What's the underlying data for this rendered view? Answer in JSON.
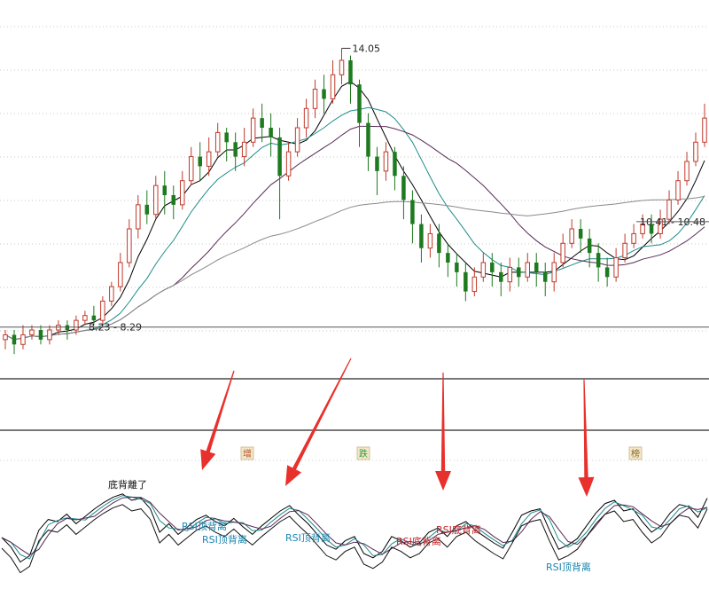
{
  "chart_data": {
    "type": "candlestick",
    "price_panel": {
      "ylim": [
        7.5,
        14.5
      ],
      "high_label": "14.05",
      "range_labels": [
        {
          "text": "8.23 - 8.29",
          "value": 8.26
        },
        {
          "text": "10.41 - 10.48",
          "value": 10.45
        }
      ],
      "candles": [
        [
          8.0,
          8.1,
          7.8,
          8.2
        ],
        [
          8.1,
          7.9,
          7.7,
          8.2
        ],
        [
          7.9,
          8.1,
          7.8,
          8.3
        ],
        [
          8.1,
          8.2,
          8.0,
          8.3
        ],
        [
          8.2,
          8.0,
          7.9,
          8.3
        ],
        [
          8.0,
          8.2,
          7.9,
          8.3
        ],
        [
          8.2,
          8.3,
          8.1,
          8.4
        ],
        [
          8.3,
          8.2,
          8.0,
          8.4
        ],
        [
          8.2,
          8.4,
          8.1,
          8.5
        ],
        [
          8.4,
          8.5,
          8.3,
          8.6
        ],
        [
          8.5,
          8.4,
          8.3,
          8.7
        ],
        [
          8.4,
          8.8,
          8.3,
          8.9
        ],
        [
          8.8,
          9.1,
          8.7,
          9.2
        ],
        [
          9.1,
          9.6,
          9.0,
          9.8
        ],
        [
          9.6,
          10.3,
          9.5,
          10.5
        ],
        [
          10.3,
          10.8,
          10.1,
          11.0
        ],
        [
          10.8,
          10.6,
          10.4,
          11.1
        ],
        [
          10.6,
          11.2,
          10.5,
          11.4
        ],
        [
          11.2,
          11.0,
          10.6,
          11.5
        ],
        [
          11.0,
          10.8,
          10.5,
          11.2
        ],
        [
          10.8,
          11.3,
          10.7,
          11.5
        ],
        [
          11.3,
          11.8,
          11.2,
          12.0
        ],
        [
          11.8,
          11.6,
          11.3,
          12.1
        ],
        [
          11.6,
          11.9,
          11.4,
          12.2
        ],
        [
          11.9,
          12.3,
          11.8,
          12.5
        ],
        [
          12.3,
          12.1,
          11.7,
          12.4
        ],
        [
          12.1,
          11.8,
          11.5,
          12.3
        ],
        [
          11.8,
          12.1,
          11.6,
          12.4
        ],
        [
          12.1,
          12.6,
          12.0,
          12.8
        ],
        [
          12.6,
          12.4,
          12.1,
          12.9
        ],
        [
          12.4,
          12.2,
          11.8,
          12.7
        ],
        [
          12.2,
          11.4,
          10.5,
          12.4
        ],
        [
          11.4,
          11.9,
          11.3,
          12.1
        ],
        [
          11.9,
          12.4,
          11.8,
          12.6
        ],
        [
          12.4,
          12.8,
          12.2,
          13.0
        ],
        [
          12.8,
          13.2,
          12.6,
          13.4
        ],
        [
          13.2,
          13.0,
          12.7,
          13.5
        ],
        [
          13.0,
          13.5,
          12.9,
          13.8
        ],
        [
          13.5,
          13.8,
          13.3,
          14.05
        ],
        [
          13.8,
          13.3,
          12.9,
          13.9
        ],
        [
          13.3,
          12.5,
          12.0,
          13.4
        ],
        [
          12.5,
          11.8,
          11.5,
          12.7
        ],
        [
          11.8,
          11.5,
          11.0,
          12.0
        ],
        [
          11.5,
          11.9,
          11.3,
          12.1
        ],
        [
          11.9,
          11.4,
          11.1,
          12.0
        ],
        [
          11.4,
          10.9,
          10.5,
          11.6
        ],
        [
          10.9,
          10.4,
          10.0,
          11.1
        ],
        [
          10.4,
          9.9,
          9.6,
          10.6
        ],
        [
          9.9,
          10.2,
          9.7,
          10.4
        ],
        [
          10.2,
          9.8,
          9.5,
          10.4
        ],
        [
          9.8,
          9.6,
          9.3,
          10.0
        ],
        [
          9.6,
          9.4,
          9.1,
          9.8
        ],
        [
          9.4,
          9.0,
          8.8,
          9.6
        ],
        [
          9.0,
          9.3,
          8.9,
          9.5
        ],
        [
          9.3,
          9.6,
          9.2,
          9.8
        ],
        [
          9.6,
          9.4,
          9.1,
          9.8
        ],
        [
          9.4,
          9.2,
          8.9,
          9.6
        ],
        [
          9.2,
          9.5,
          9.0,
          9.7
        ],
        [
          9.5,
          9.3,
          9.1,
          9.7
        ],
        [
          9.3,
          9.6,
          9.2,
          9.8
        ],
        [
          9.6,
          9.4,
          9.1,
          9.8
        ],
        [
          9.4,
          9.2,
          8.9,
          9.6
        ],
        [
          9.2,
          9.6,
          9.0,
          9.8
        ],
        [
          9.6,
          10.0,
          9.5,
          10.2
        ],
        [
          10.0,
          10.3,
          9.9,
          10.5
        ],
        [
          10.3,
          10.1,
          9.8,
          10.5
        ],
        [
          10.1,
          9.8,
          9.5,
          10.3
        ],
        [
          9.8,
          9.5,
          9.2,
          10.0
        ],
        [
          9.5,
          9.3,
          9.1,
          9.7
        ],
        [
          9.3,
          9.7,
          9.2,
          9.9
        ],
        [
          9.7,
          10.0,
          9.6,
          10.2
        ],
        [
          10.0,
          10.2,
          9.9,
          10.4
        ],
        [
          10.2,
          10.4,
          10.1,
          10.6
        ],
        [
          10.4,
          10.2,
          10.0,
          10.6
        ],
        [
          10.2,
          10.5,
          10.1,
          10.7
        ],
        [
          10.5,
          10.9,
          10.4,
          11.1
        ],
        [
          10.9,
          11.3,
          10.8,
          11.5
        ],
        [
          11.3,
          11.7,
          11.2,
          11.9
        ],
        [
          11.7,
          12.1,
          11.6,
          12.3
        ],
        [
          12.1,
          12.6,
          12.0,
          12.9
        ]
      ],
      "ma_lines": [
        {
          "name": "MA5",
          "color": "#000000"
        },
        {
          "name": "MA10",
          "color": "#1f8a8a"
        },
        {
          "name": "MA20",
          "color": "#5a2a55"
        },
        {
          "name": "MA60",
          "color": "#8a8a8a"
        }
      ]
    },
    "rsi_panel": {
      "ylim": [
        0,
        100
      ],
      "series_colors": [
        "#000000",
        "#1f8a8a",
        "#5a2a55"
      ],
      "values": [
        45,
        36,
        22,
        28,
        52,
        62,
        60,
        67,
        58,
        65,
        72,
        78,
        83,
        86,
        80,
        82,
        72,
        50,
        58,
        48,
        55,
        62,
        66,
        60,
        56,
        63,
        55,
        48,
        56,
        63,
        70,
        75,
        66,
        58,
        48,
        38,
        34,
        42,
        46,
        30,
        26,
        32,
        46,
        42,
        36,
        40,
        50,
        54,
        46,
        56,
        60,
        52,
        46,
        40,
        35,
        50,
        66,
        70,
        72,
        52,
        34,
        38,
        44,
        56,
        68,
        77,
        80,
        70,
        72,
        60,
        50,
        56,
        68,
        76,
        74,
        64,
        82
      ],
      "annotations": [
        {
          "text": "RSI顶背离",
          "color": "#1a86b0",
          "x": 205,
          "y": 597
        },
        {
          "text": "RSI顶背离",
          "color": "#1a86b0",
          "x": 228,
          "y": 612
        },
        {
          "text": "RSI顶背离",
          "color": "#1a86b0",
          "x": 322,
          "y": 610
        },
        {
          "text": "RSI底背离",
          "color": "#c0262d",
          "x": 492,
          "y": 601
        },
        {
          "text": "RSI底背离",
          "color": "#c0262d",
          "x": 447,
          "y": 614
        },
        {
          "text": "RSI顶背离",
          "color": "#1a86b0",
          "x": 616,
          "y": 643
        }
      ],
      "garbled_label": "底背離了"
    },
    "badges": [
      {
        "text": "增",
        "x": 279,
        "color": "#b5502a"
      },
      {
        "text": "跌",
        "x": 410,
        "color": "#2e9a3c"
      },
      {
        "text": "榜",
        "x": 717,
        "color": "#8a6a2a"
      }
    ],
    "arrows": [
      {
        "from": [
          264,
          418
        ],
        "to": [
          228,
          530
        ]
      },
      {
        "from": [
          396,
          404
        ],
        "to": [
          322,
          548
        ]
      },
      {
        "from": [
          500,
          420
        ],
        "to": [
          500,
          553
        ]
      },
      {
        "from": [
          659,
          428
        ],
        "to": [
          662,
          560
        ]
      }
    ]
  }
}
